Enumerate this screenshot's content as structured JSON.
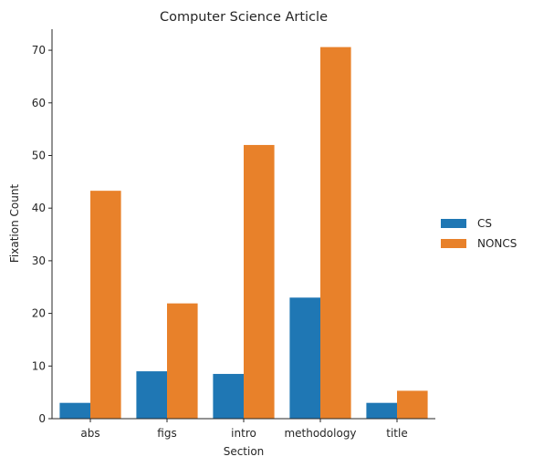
{
  "chart_data": {
    "type": "bar",
    "title": "Computer Science Article",
    "xlabel": "Section",
    "ylabel": "Fixation Count",
    "categories": [
      "abs",
      "figs",
      "intro",
      "methodology",
      "title"
    ],
    "series": [
      {
        "name": "CS",
        "color": "#1f77b4",
        "values": [
          3,
          9,
          8.5,
          23,
          3
        ]
      },
      {
        "name": "NONCS",
        "color": "#e8812a",
        "values": [
          43.3,
          21.9,
          52,
          70.6,
          5.3
        ]
      }
    ],
    "ylim": [
      0,
      74
    ],
    "yticks": [
      0,
      10,
      20,
      30,
      40,
      50,
      60,
      70
    ],
    "grid": false,
    "legend_position": "center-right"
  }
}
